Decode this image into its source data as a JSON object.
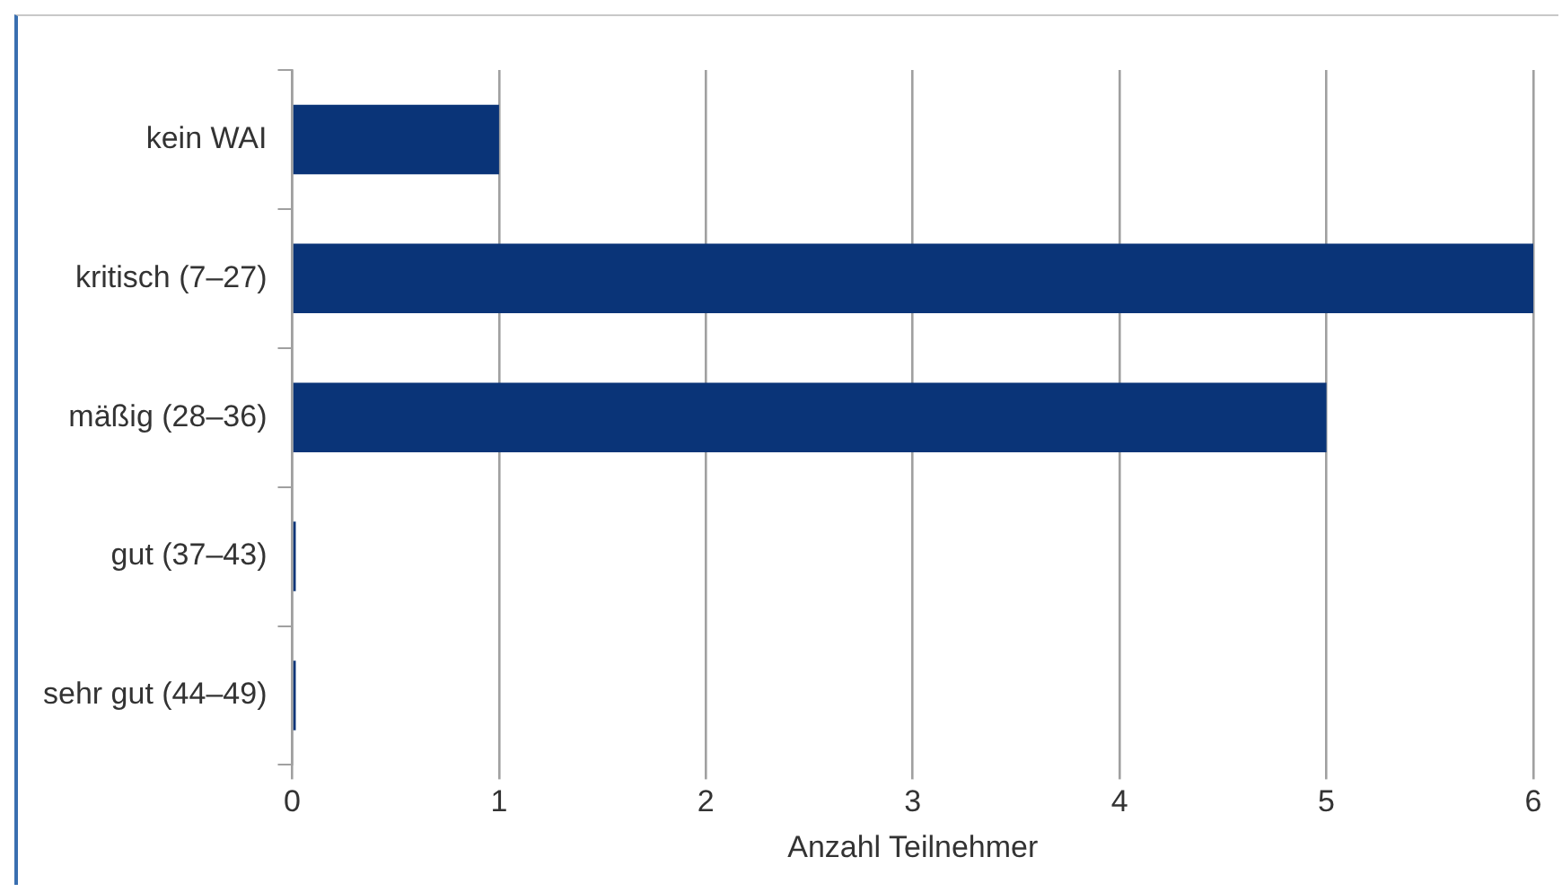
{
  "chart_data": {
    "type": "bar",
    "orientation": "horizontal",
    "categories": [
      "kein WAI",
      "kritisch (7–27)",
      "mäßig (28–36)",
      "gut (37–43)",
      "sehr gut (44–49)"
    ],
    "values": [
      1,
      6,
      5,
      0,
      0
    ],
    "color": "#0a3478",
    "xlabel": "Anzahl Teilnehmer",
    "xlim": [
      0,
      6
    ],
    "xticks": [
      0,
      1,
      2,
      3,
      4,
      5,
      6
    ],
    "grid": "x",
    "legend": false
  }
}
